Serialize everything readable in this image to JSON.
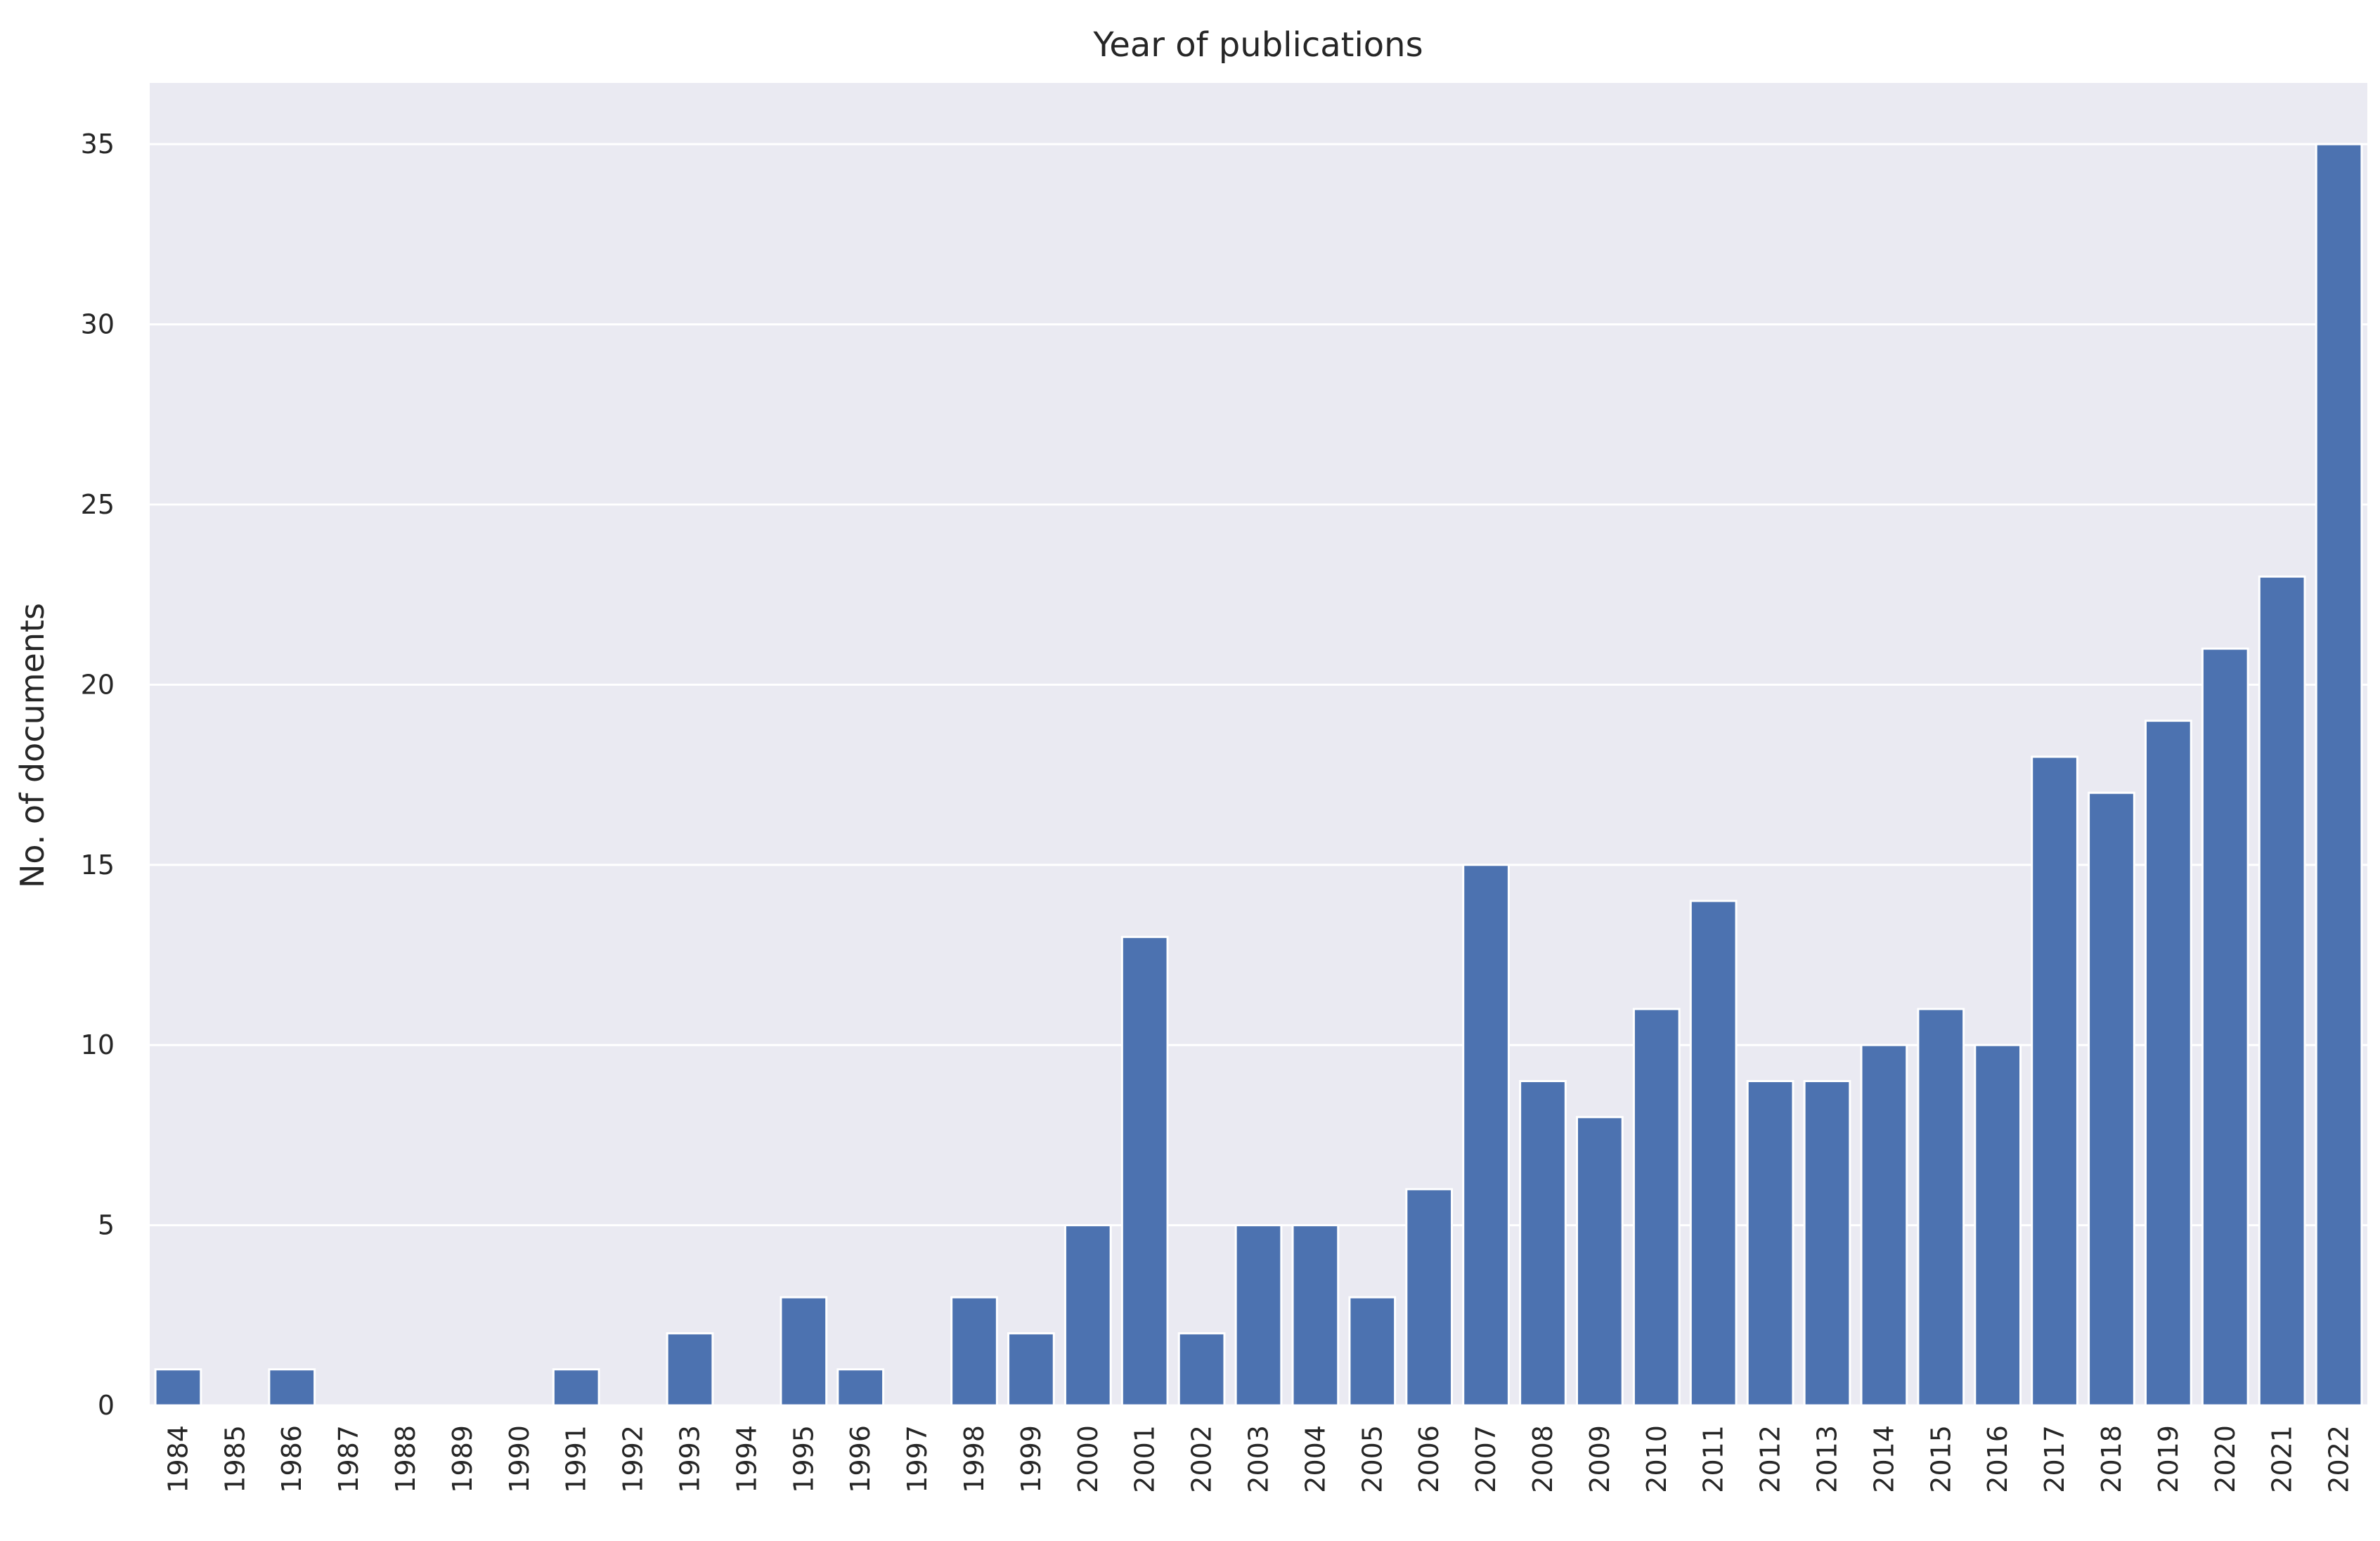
{
  "chart_data": {
    "type": "bar",
    "title": "Year of publications",
    "xlabel": "",
    "ylabel": "No. of documents",
    "ylim": [
      0,
      36.7
    ],
    "yticks": [
      0,
      5,
      10,
      15,
      20,
      25,
      30,
      35
    ],
    "grid": true,
    "bar_color": "#4c72b0",
    "background_color": "#eaeaf2",
    "categories": [
      "1984",
      "1985",
      "1986",
      "1987",
      "1988",
      "1989",
      "1990",
      "1991",
      "1992",
      "1993",
      "1994",
      "1995",
      "1996",
      "1997",
      "1998",
      "1999",
      "2000",
      "2001",
      "2002",
      "2003",
      "2004",
      "2005",
      "2006",
      "2007",
      "2008",
      "2009",
      "2010",
      "2011",
      "2012",
      "2013",
      "2014",
      "2015",
      "2016",
      "2017",
      "2018",
      "2019",
      "2020",
      "2021",
      "2022"
    ],
    "values": [
      1,
      0,
      1,
      0,
      0,
      0,
      0,
      1,
      0,
      2,
      0,
      3,
      1,
      0,
      3,
      2,
      5,
      13,
      2,
      5,
      5,
      3,
      6,
      15,
      9,
      8,
      11,
      14,
      9,
      9,
      10,
      11,
      10,
      18,
      17,
      19,
      21,
      23,
      35
    ]
  }
}
